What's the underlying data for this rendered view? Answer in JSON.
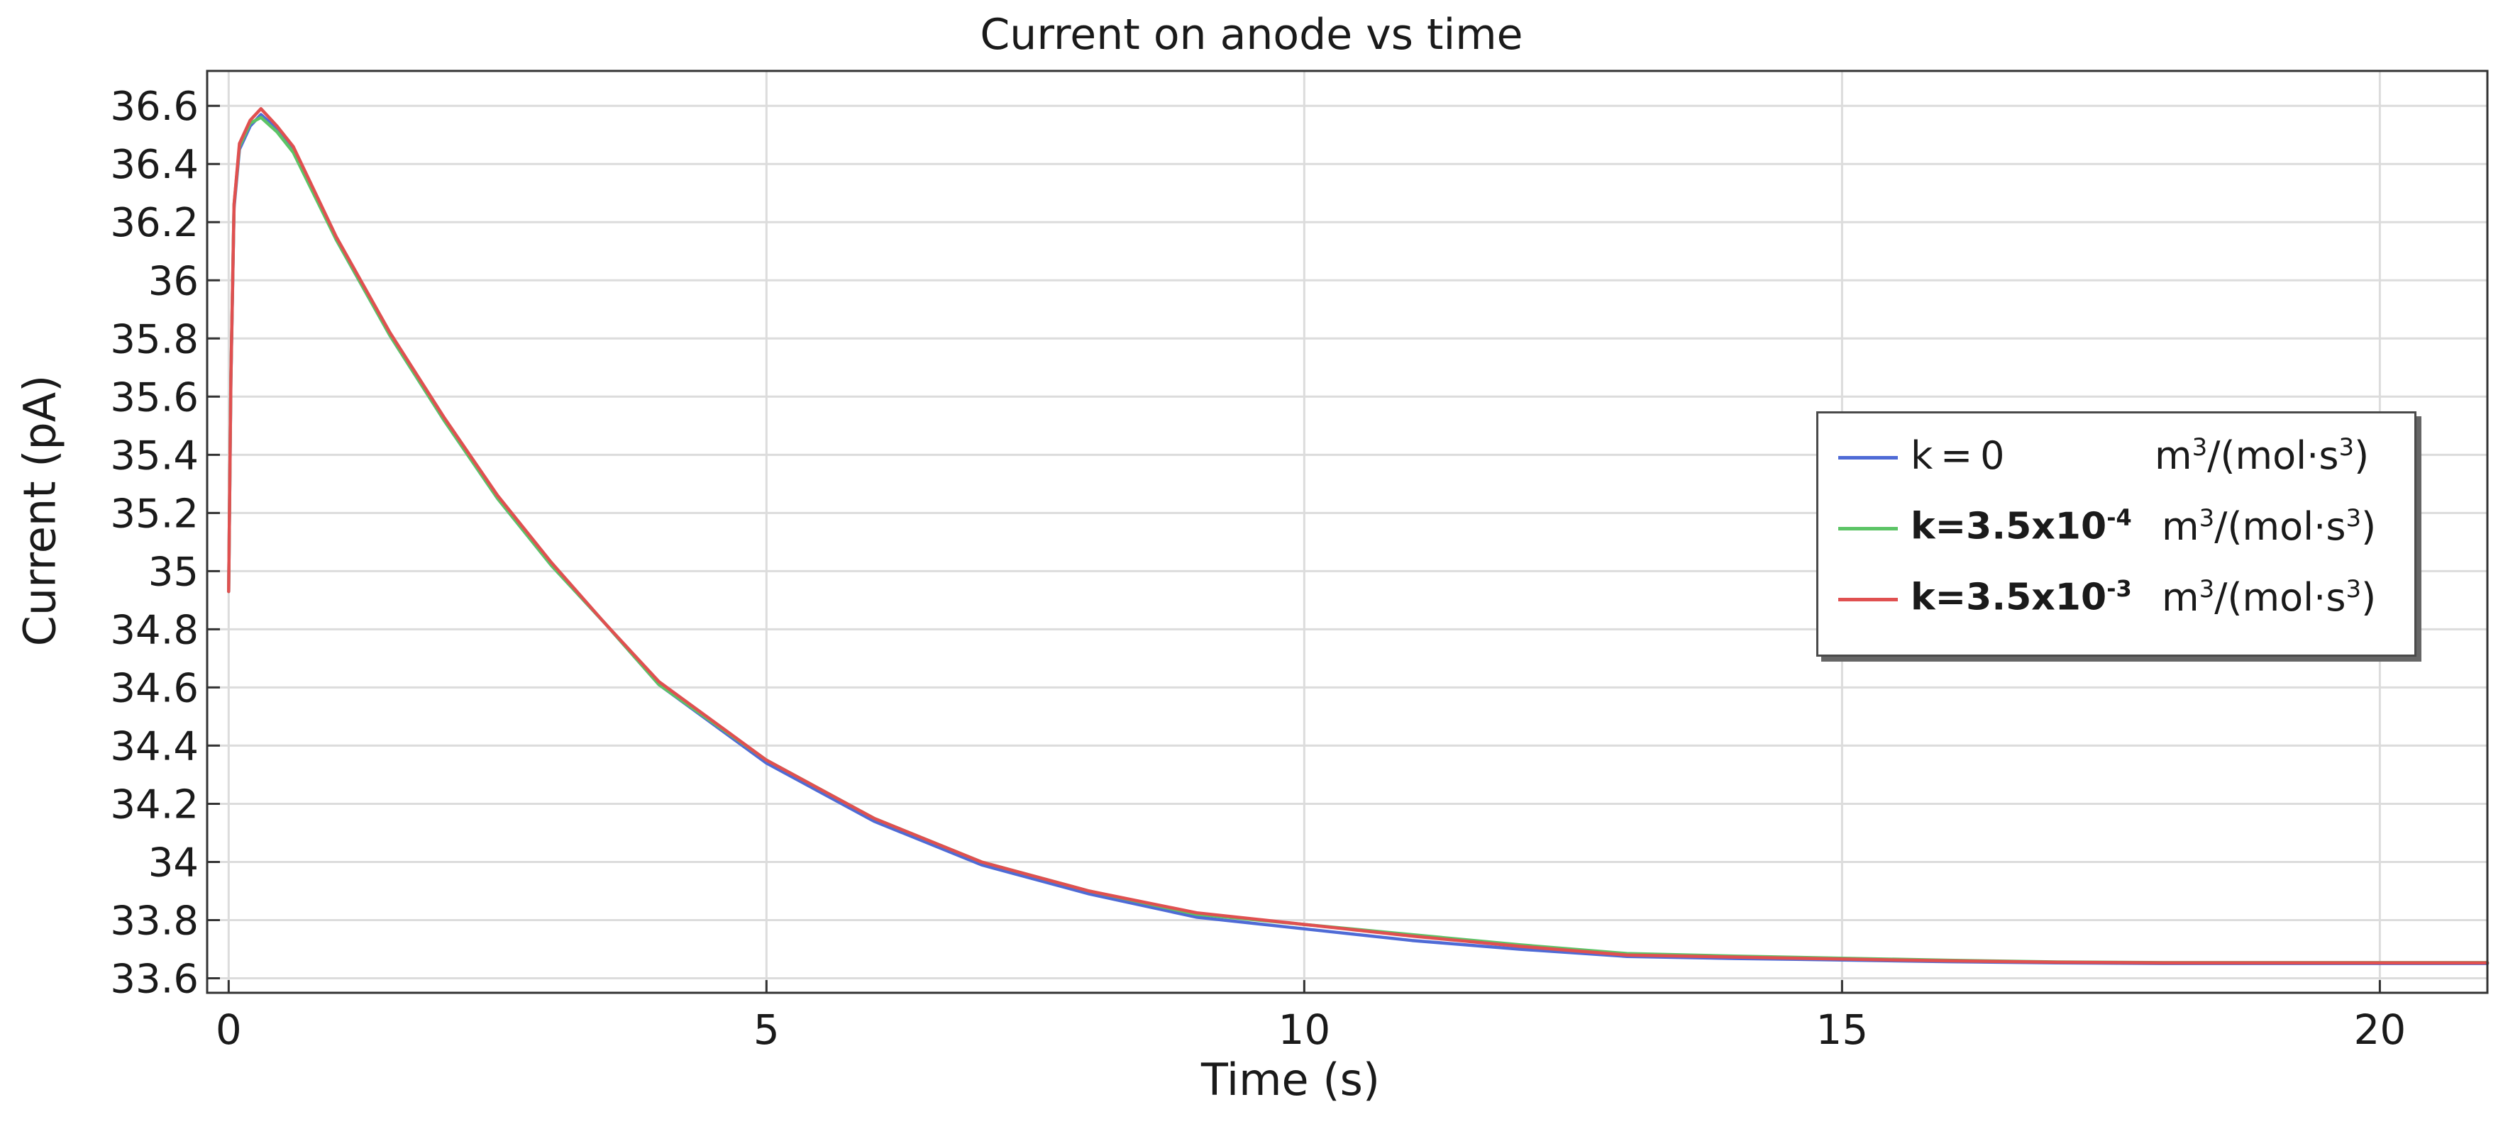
{
  "chart_data": {
    "type": "line",
    "title": "Current on anode vs time",
    "xlabel": "Time (s)",
    "ylabel": "Current (pA)",
    "xlim": [
      -0.2,
      21
    ],
    "ylim": [
      33.55,
      36.72
    ],
    "x_ticks": [
      "0",
      "5",
      "10",
      "15",
      "20"
    ],
    "x_tick_values": [
      0,
      5,
      10,
      15,
      20
    ],
    "y_ticks": [
      "33.6",
      "33.8",
      "34",
      "34.2",
      "34.4",
      "34.6",
      "34.8",
      "35",
      "35.2",
      "35.4",
      "35.6",
      "35.8",
      "36",
      "36.2",
      "36.4",
      "36.6"
    ],
    "y_tick_values": [
      33.6,
      33.8,
      34.0,
      34.2,
      34.4,
      34.6,
      34.8,
      35.0,
      35.2,
      35.4,
      35.6,
      35.8,
      36.0,
      36.2,
      36.4,
      36.6
    ],
    "grid": true,
    "legend_position": "right",
    "series": [
      {
        "name": "k = 0",
        "unit": "m³/(mol·s³)",
        "color": "#4f6bd6",
        "x": [
          0,
          0.02,
          0.05,
          0.1,
          0.2,
          0.3,
          0.45,
          0.6,
          1,
          1.5,
          2,
          2.5,
          3,
          3.5,
          4,
          5,
          6,
          7,
          8,
          9,
          10,
          11,
          12,
          13,
          14,
          15,
          16,
          17,
          18,
          19,
          20,
          21
        ],
        "values": [
          34.93,
          35.65,
          36.25,
          36.45,
          36.53,
          36.57,
          36.52,
          36.45,
          36.14,
          35.81,
          35.52,
          35.25,
          35.02,
          34.82,
          34.61,
          34.34,
          34.14,
          33.99,
          33.89,
          33.81,
          33.77,
          33.73,
          33.7,
          33.675,
          33.668,
          33.663,
          33.657,
          33.653,
          33.651,
          33.651,
          33.651,
          33.651
        ]
      },
      {
        "name": "k=3.5x10",
        "name_superscript": "-4",
        "unit": "m³/(mol·s³)",
        "color": "#5cc466",
        "x": [
          0,
          0.02,
          0.05,
          0.1,
          0.2,
          0.3,
          0.45,
          0.6,
          1,
          1.5,
          2,
          2.5,
          3,
          3.5,
          4,
          5,
          6,
          7,
          8,
          9,
          10,
          11,
          12,
          13,
          14,
          15,
          16,
          17,
          18,
          19,
          20,
          21
        ],
        "values": [
          34.93,
          35.66,
          36.26,
          36.46,
          36.54,
          36.56,
          36.51,
          36.44,
          36.14,
          35.81,
          35.52,
          35.25,
          35.02,
          34.82,
          34.61,
          34.35,
          34.15,
          34.0,
          33.9,
          33.82,
          33.785,
          33.75,
          33.715,
          33.685,
          33.676,
          33.669,
          33.662,
          33.656,
          33.654,
          33.654,
          33.654,
          33.654
        ]
      },
      {
        "name": "k=3.5x10",
        "name_superscript": "-3",
        "unit": "m³/(mol·s³)",
        "color": "#e05050",
        "x": [
          0,
          0.02,
          0.05,
          0.1,
          0.2,
          0.3,
          0.45,
          0.6,
          1,
          1.5,
          2,
          2.5,
          3,
          3.5,
          4,
          5,
          6,
          7,
          8,
          9,
          10,
          11,
          12,
          13,
          14,
          15,
          16,
          17,
          18,
          19,
          20,
          21
        ],
        "values": [
          34.93,
          35.66,
          36.26,
          36.47,
          36.55,
          36.59,
          36.53,
          36.46,
          36.15,
          35.82,
          35.53,
          35.26,
          35.03,
          34.82,
          34.62,
          34.35,
          34.15,
          34.0,
          33.9,
          33.825,
          33.785,
          33.745,
          33.71,
          33.68,
          33.673,
          33.666,
          33.66,
          33.655,
          33.653,
          33.653,
          33.653,
          33.653
        ]
      }
    ]
  },
  "legend": {
    "items": [
      {
        "label": "k = 0",
        "sup": "",
        "unit": "m³/(mol·s³)"
      },
      {
        "label": "k=3.5x10",
        "sup": "-4",
        "unit": "m³/(mol·s³)"
      },
      {
        "label": "k=3.5x10",
        "sup": "-3",
        "unit": "m³/(mol·s³)"
      }
    ]
  }
}
